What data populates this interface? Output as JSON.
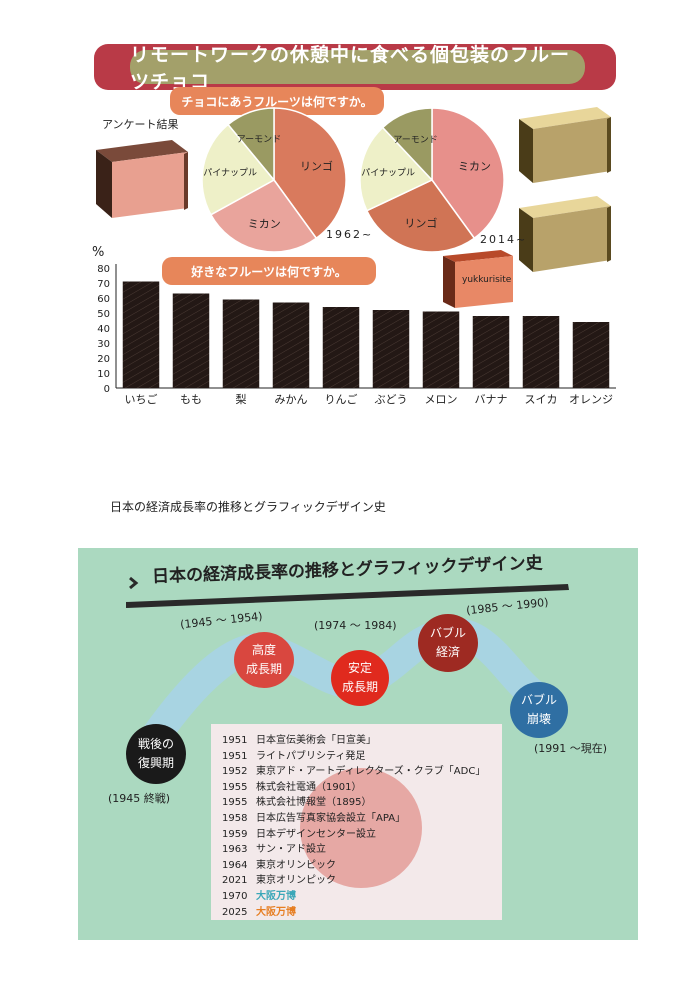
{
  "banner": {
    "title": "リモートワークの休憩中に食べる個包装のフルーツチョコ"
  },
  "survey_label": "アンケート結果",
  "pie_section_title": "チョコにあうフルーツは何ですか。",
  "bar_section_title": "好きなフルーツは何ですか。",
  "colors": {
    "banner": "#b93a47",
    "banner_inner": "#a3a06a",
    "pill": "#e7865a",
    "panel": "#abd9c0"
  },
  "chart_data": [
    {
      "type": "pie",
      "caption": "1962~",
      "slices": [
        {
          "label": "リンゴ",
          "value": 40,
          "color": "#d97a5d"
        },
        {
          "label": "ミカン",
          "value": 27,
          "color": "#e9a49c"
        },
        {
          "label": "パイナップル",
          "value": 22,
          "color": "#eef0c8"
        },
        {
          "label": "アーモンド",
          "value": 11,
          "color": "#9a9a62"
        }
      ]
    },
    {
      "type": "pie",
      "caption": "2014~",
      "slices": [
        {
          "label": "ミカン",
          "value": 40,
          "color": "#e7908b"
        },
        {
          "label": "リンゴ",
          "value": 28,
          "color": "#d07455"
        },
        {
          "label": "パイナップル",
          "value": 20,
          "color": "#eef0c8"
        },
        {
          "label": "アーモンド",
          "value": 12,
          "color": "#9a9a62"
        }
      ]
    },
    {
      "type": "bar",
      "ylabel": "%",
      "ylim": [
        0,
        80
      ],
      "yticks": [
        0,
        10,
        20,
        30,
        40,
        50,
        60,
        70,
        80
      ],
      "categories": [
        "いちご",
        "もも",
        "梨",
        "みかん",
        "りんご",
        "ぶどう",
        "メロン",
        "バナナ",
        "スイカ",
        "オレンジ"
      ],
      "values": [
        71,
        63,
        59,
        57,
        54,
        52,
        51,
        48,
        48,
        44
      ],
      "color": "#231815"
    }
  ],
  "watermark": "yukkurisite",
  "section2_heading": "日本の経済成長率の推移とグラフィックデザイン史",
  "panel_title": "日本の経済成長率の推移とグラフィックデザイン史",
  "eras": [
    {
      "line1": "戦後の",
      "line2": "復興期",
      "period": "(1945 終戦)",
      "color": "#1a1a1a"
    },
    {
      "line1": "高度",
      "line2": "成長期",
      "period": "(1945 〜 1954)",
      "color": "#d9473f"
    },
    {
      "line1": "安定",
      "line2": "成長期",
      "period": "(1974 〜 1984)",
      "color": "#e02a1e"
    },
    {
      "line1": "バブル",
      "line2": "経済",
      "period": "(1985 〜 1990)",
      "color": "#9e2a22"
    },
    {
      "line1": "バブル",
      "line2": "崩壊",
      "period": "(1991 〜現在)",
      "color": "#2f6fa3"
    }
  ],
  "timeline": [
    {
      "year": "1951",
      "text": "日本宣伝美術会「日宣美」"
    },
    {
      "year": "1951",
      "text": "ライトパブリシティ発足"
    },
    {
      "year": "1952",
      "text": "東京アド・アートディレクターズ・クラブ「ADC」"
    },
    {
      "year": "1955",
      "text": "株式会社電通（1901）"
    },
    {
      "year": "1955",
      "text": "株式会社博報堂（1895）"
    },
    {
      "year": "1958",
      "text": "日本広告写真家協会設立「APA」"
    },
    {
      "year": "1959",
      "text": "日本デザインセンター設立"
    },
    {
      "year": "1963",
      "text": "サン・アド設立"
    },
    {
      "year": "1964",
      "text": "東京オリンピック"
    },
    {
      "year": "2021",
      "text": "東京オリンピック"
    },
    {
      "year": "1970",
      "text": "大阪万博",
      "color": "#3aa7b8"
    },
    {
      "year": "2025",
      "text": "大阪万博",
      "color": "#e67e22"
    }
  ]
}
